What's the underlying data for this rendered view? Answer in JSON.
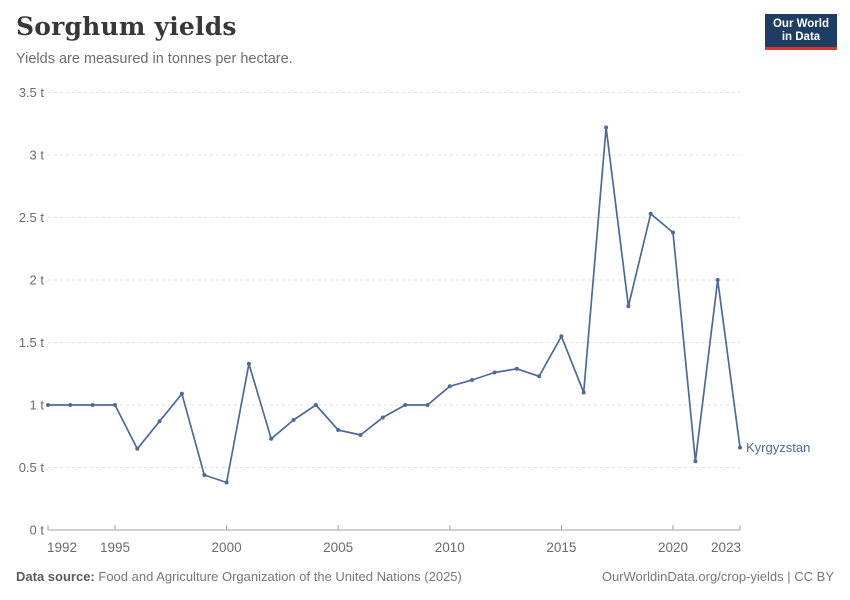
{
  "header": {
    "title": "Sorghum yields",
    "subtitle": "Yields are measured in tonnes per hectare."
  },
  "logo": {
    "line1": "Our World",
    "line2": "in Data",
    "bg_color": "#1d3d63",
    "accent_color": "#d9352c"
  },
  "footer": {
    "source_label": "Data source:",
    "source_text": "Food and Agriculture Organization of the United Nations (2025)",
    "right_text": "OurWorldinData.org/crop-yields | CC BY"
  },
  "chart_data": {
    "type": "line",
    "title": "Sorghum yields",
    "ylabel": "tonnes per hectare",
    "unit": "t",
    "xlim": [
      1992,
      2023
    ],
    "ylim": [
      0,
      3.5
    ],
    "grid": "horizontal-dashed",
    "legend_position": "end-of-line-label",
    "x_ticks": [
      1992,
      1995,
      2000,
      2005,
      2010,
      2015,
      2020,
      2023
    ],
    "x_tick_labels": [
      "1992",
      "1995",
      "2000",
      "2005",
      "2010",
      "2015",
      "2020",
      "2023"
    ],
    "y_ticks": [
      0,
      0.5,
      1,
      1.5,
      2,
      2.5,
      3,
      3.5
    ],
    "y_tick_labels": [
      "0 t",
      "0.5 t",
      "1 t",
      "1.5 t",
      "2 t",
      "2.5 t",
      "3 t",
      "3.5 t"
    ],
    "series": [
      {
        "name": "Kyrgyzstan",
        "color": "#4c6a9c",
        "x": [
          1992,
          1993,
          1994,
          1995,
          1996,
          1997,
          1998,
          1999,
          2000,
          2001,
          2002,
          2003,
          2004,
          2005,
          2006,
          2007,
          2008,
          2009,
          2010,
          2011,
          2012,
          2013,
          2014,
          2015,
          2016,
          2017,
          2018,
          2019,
          2020,
          2021,
          2022,
          2023
        ],
        "values": [
          1.0,
          1.0,
          1.0,
          1.0,
          0.65,
          0.87,
          1.09,
          0.44,
          0.38,
          1.33,
          0.73,
          0.88,
          1.0,
          0.8,
          0.76,
          0.9,
          1.0,
          1.0,
          1.15,
          1.2,
          1.26,
          1.29,
          1.23,
          1.55,
          1.1,
          3.22,
          1.79,
          2.53,
          2.38,
          0.55,
          2.0,
          0.66
        ]
      }
    ],
    "colors": {
      "gridline": "#e2e2e2",
      "axis": "#a1a1a1",
      "tick_label": "#6b6b6b"
    }
  }
}
